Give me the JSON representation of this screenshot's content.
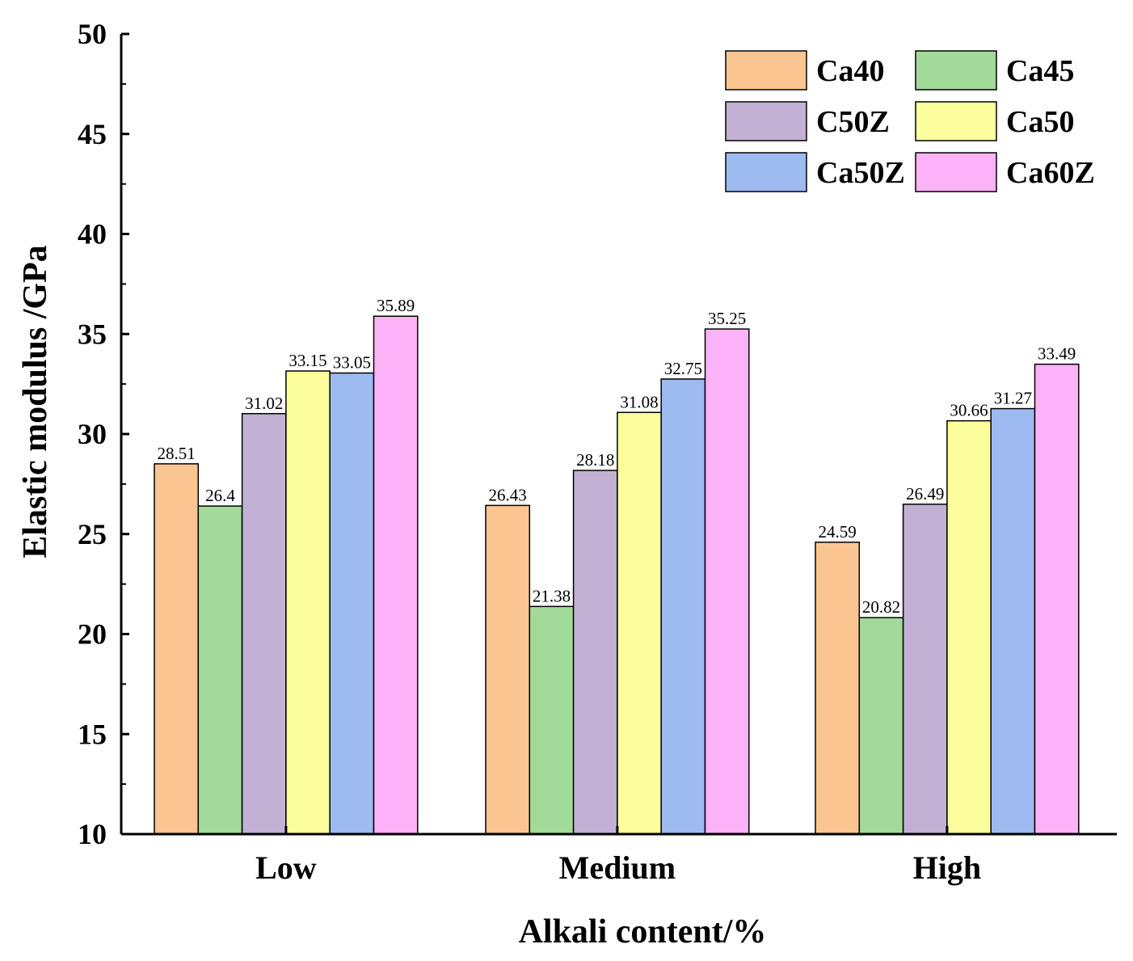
{
  "chart_data": {
    "type": "bar",
    "title": "",
    "xlabel": "Alkali content/%",
    "ylabel": "Elastic modulus /GPa",
    "ylim": [
      10,
      50
    ],
    "yticks": [
      10,
      15,
      20,
      25,
      30,
      35,
      40,
      45,
      50
    ],
    "grid": false,
    "legend_position": "top-right",
    "categories": [
      "Low",
      "Medium",
      "High"
    ],
    "series": [
      {
        "name": "Ca40",
        "color": "#FBC591",
        "values": [
          28.51,
          26.43,
          24.59
        ],
        "labels": [
          "28.51",
          "26.43",
          "24.59"
        ]
      },
      {
        "name": "Ca45",
        "color": "#A2DA9A",
        "values": [
          26.4,
          21.38,
          20.82
        ],
        "labels": [
          "26.4",
          "21.38",
          "20.82"
        ]
      },
      {
        "name": "C50Z",
        "color": "#C2B1D4",
        "values": [
          31.02,
          28.18,
          26.49
        ],
        "labels": [
          "31.02",
          "28.18",
          "26.49"
        ]
      },
      {
        "name": "Ca50",
        "color": "#FCFD9C",
        "values": [
          33.15,
          31.08,
          30.66
        ],
        "labels": [
          "33.15",
          "31.08",
          "30.66"
        ]
      },
      {
        "name": "Ca50Z",
        "color": "#9DBAF1",
        "values": [
          33.05,
          32.75,
          31.27
        ],
        "labels": [
          "33.05",
          "32.75",
          "31.27"
        ]
      },
      {
        "name": "Ca60Z",
        "color": "#FCB2F6",
        "values": [
          35.89,
          35.25,
          33.49
        ],
        "labels": [
          "35.89",
          "35.25",
          "33.49"
        ]
      }
    ]
  }
}
